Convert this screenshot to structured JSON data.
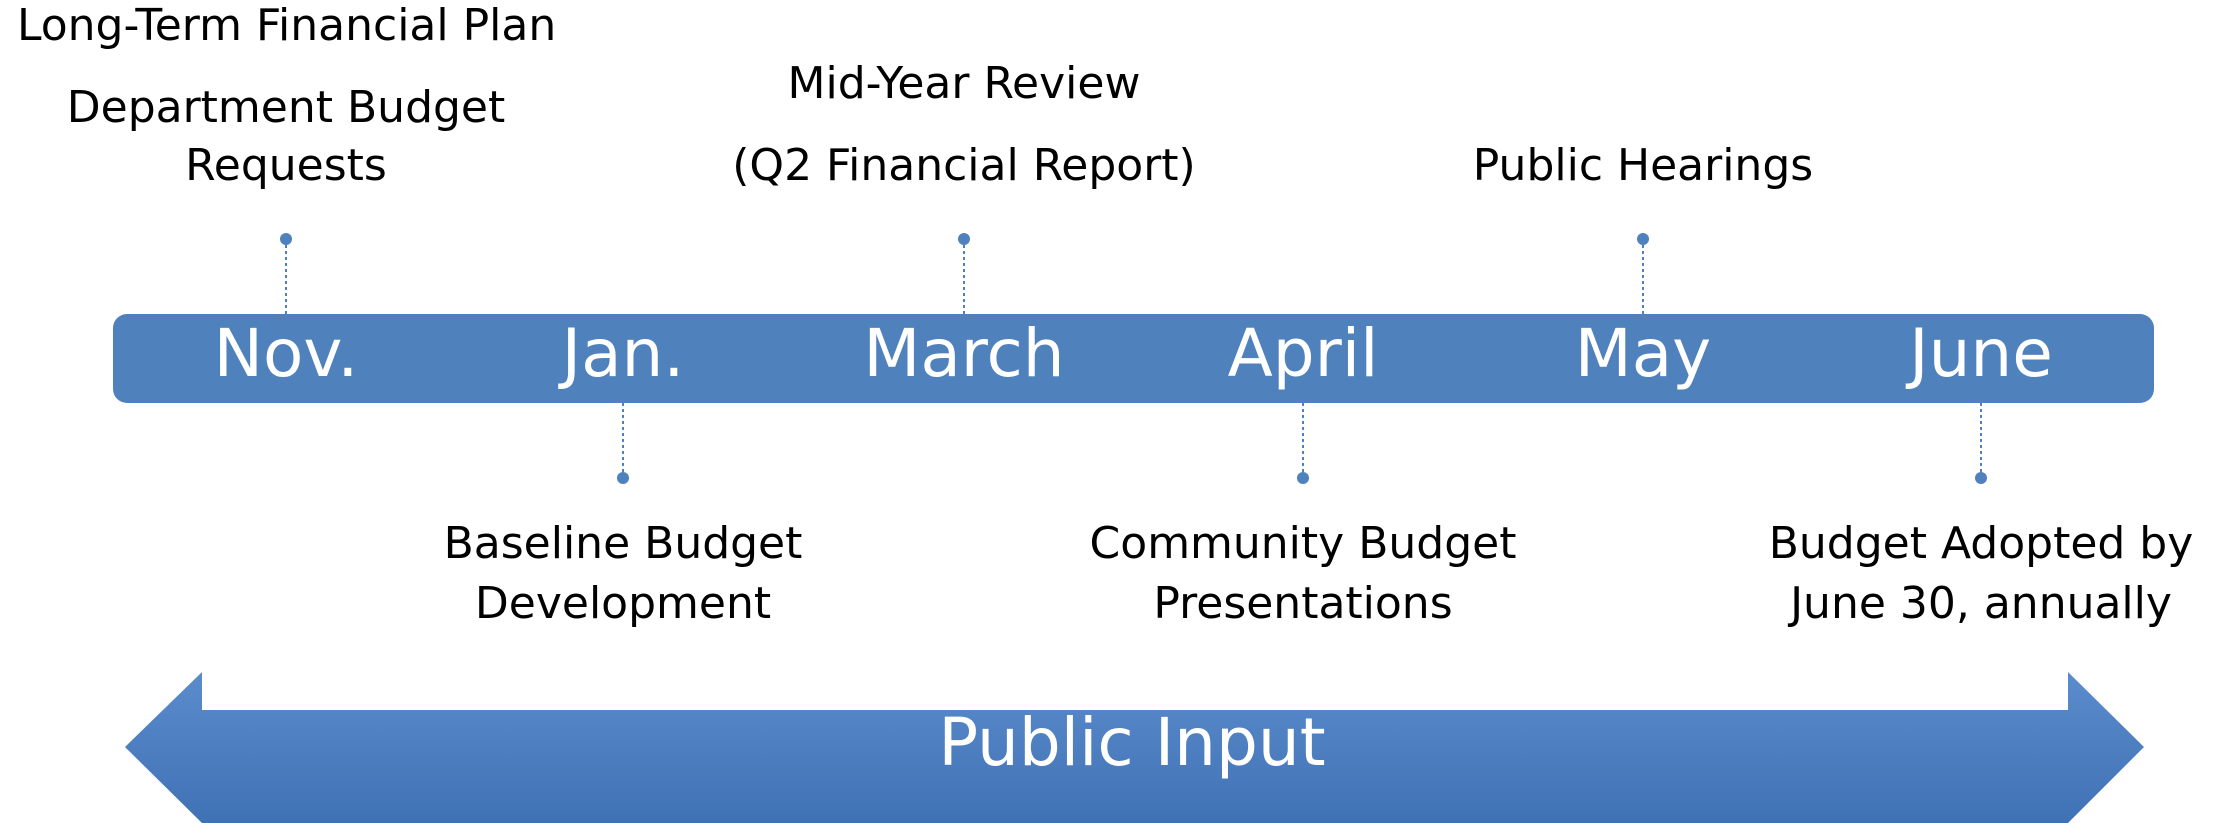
{
  "header": {
    "title": "Long-Term Financial Plan"
  },
  "timeline": {
    "months": [
      "Nov.",
      "Jan.",
      "March",
      "April",
      "May",
      "June"
    ],
    "events": [
      {
        "position": "above",
        "lines": [
          "Department Budget",
          "Requests"
        ]
      },
      {
        "position": "below",
        "lines": [
          "Baseline Budget",
          "Development"
        ]
      },
      {
        "position": "above",
        "lines": [
          "Mid-Year Review",
          "(Q2 Financial Report)"
        ]
      },
      {
        "position": "below",
        "lines": [
          "Community Budget",
          "Presentations"
        ]
      },
      {
        "position": "above",
        "lines": [
          "Public Hearings"
        ]
      },
      {
        "position": "below",
        "lines": [
          "Budget Adopted by",
          "June 30, annually"
        ]
      }
    ]
  },
  "arrow": {
    "label": "Public Input"
  }
}
